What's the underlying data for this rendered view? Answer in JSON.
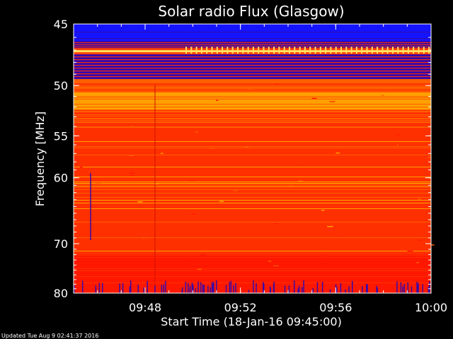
{
  "chart_data": {
    "type": "heatmap",
    "title": "Solar radio Flux (Glasgow)",
    "xlabel": "Start Time (18-Jan-16 09:45:00)",
    "ylabel": "Frequency [MHz]",
    "x_tick_labels": [
      "09:48",
      "09:52",
      "09:56",
      "10:00"
    ],
    "x_tick_minutes": [
      3,
      7,
      11,
      15
    ],
    "xlim_minutes": [
      0,
      15
    ],
    "y_tick_labels": [
      "45",
      "50",
      "55",
      "60",
      "70",
      "80"
    ],
    "y_tick_values": [
      45,
      50,
      55,
      60,
      70,
      80
    ],
    "ylim": [
      45,
      80
    ],
    "y_scale": "reciprocal",
    "colors": {
      "background": "#000000",
      "quiet_band": "#1414ff",
      "dark_band": "#3a0aa8",
      "mid": "#ff3000",
      "warm": "#ff6000",
      "bright": "#ffa000",
      "hot": "#ffe060"
    }
  },
  "footer": {
    "updated": "Updated Tue Aug  9 02:41:37 2016"
  }
}
